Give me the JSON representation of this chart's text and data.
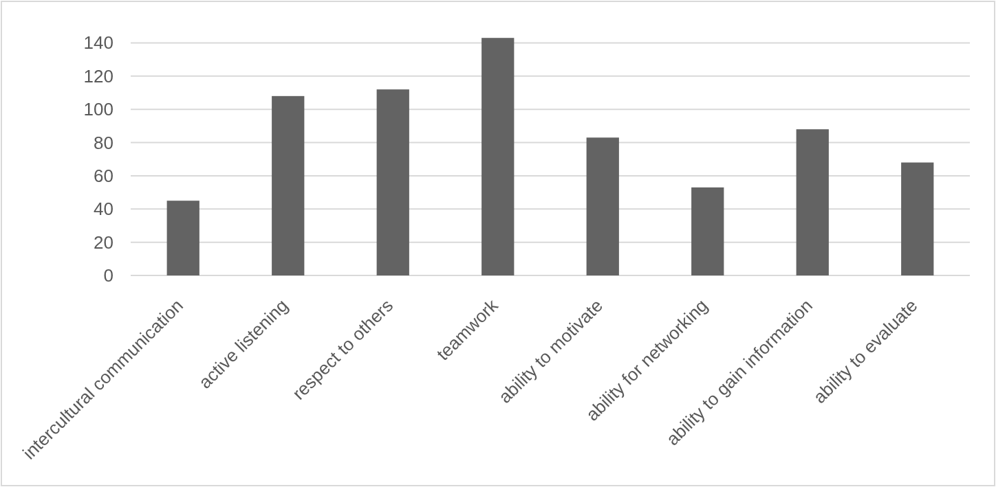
{
  "chart_data": {
    "type": "bar",
    "categories": [
      "intercultural communication",
      "active listening",
      "respect to others",
      "teamwork",
      "ability to motivate",
      "ability for networking",
      "ability to gain information",
      "ability to evaluate"
    ],
    "values": [
      45,
      108,
      112,
      143,
      83,
      53,
      88,
      68
    ],
    "color": "#636363",
    "ylim": [
      0,
      165
    ],
    "yticks": [
      0,
      20,
      40,
      60,
      80,
      100,
      120,
      140
    ],
    "grid": "y"
  }
}
